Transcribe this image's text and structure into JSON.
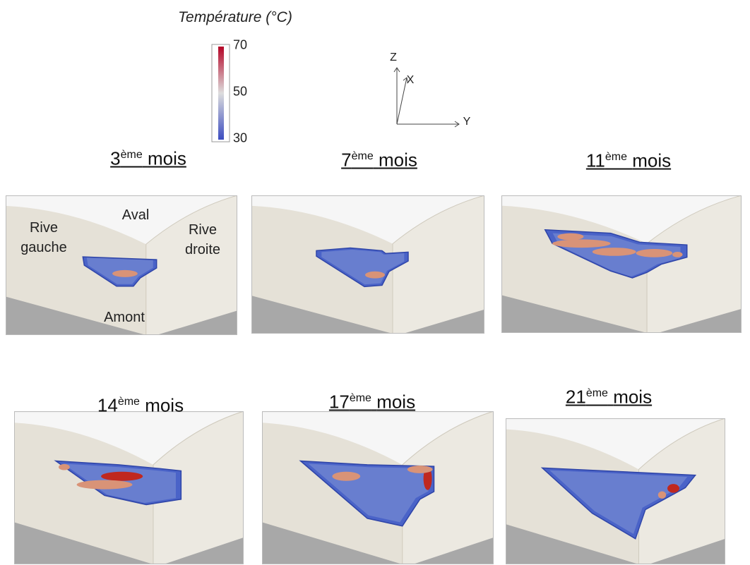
{
  "colorbar": {
    "title": "Température (°C)",
    "range": [
      30,
      70
    ],
    "ticks": [
      30,
      50,
      70
    ]
  },
  "axes": {
    "z": "Z",
    "x": "X",
    "y": "Y"
  },
  "panel_labels": {
    "aval": "Aval",
    "rive_gauche": "Rive gauche",
    "rive_droite": "Rive droite",
    "amont": "Amont"
  },
  "panels": [
    {
      "number": "3",
      "suffix": "ème",
      "word": "mois",
      "underlined": true
    },
    {
      "number": "7",
      "suffix": "ème",
      "word": "mois",
      "underlined": true
    },
    {
      "number": "11",
      "suffix": "ème",
      "word": "mois",
      "underlined": true
    },
    {
      "number": "14",
      "suffix": "ème",
      "word": "mois",
      "underlined": false
    },
    {
      "number": "17",
      "suffix": "ème",
      "word": "mois",
      "underlined": true
    },
    {
      "number": "21",
      "suffix": "ème",
      "word": "mois",
      "underlined": true
    }
  ]
}
